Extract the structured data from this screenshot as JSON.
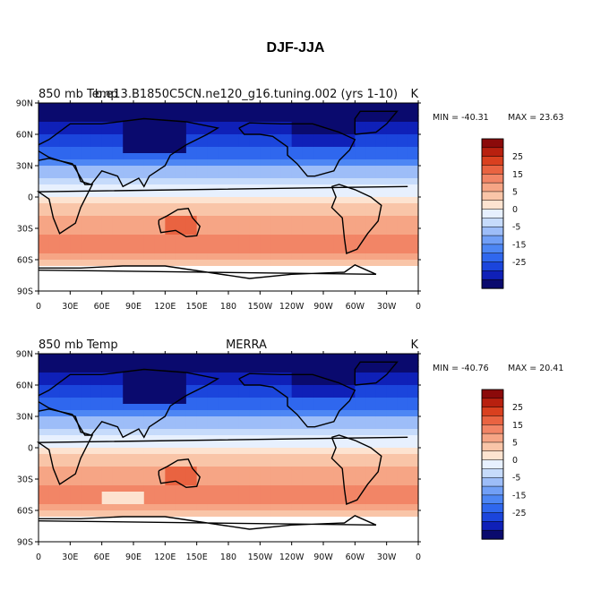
{
  "figure": {
    "title": "DJF-JJA"
  },
  "colors": {
    "scale": [
      "#0a0a6e",
      "#0f20b8",
      "#1b45dc",
      "#2f67ee",
      "#4d86f4",
      "#719ff6",
      "#9dbdf8",
      "#c6dbfb",
      "#e7f0fe",
      "#fde3d0",
      "#f9c5a8",
      "#f6a585",
      "#f28566",
      "#e96341",
      "#d9401f",
      "#b8200f",
      "#8b0a0a"
    ],
    "land_fill": "#ffffff",
    "coast": "#000000"
  },
  "chart_data": [
    {
      "type": "heatmap",
      "left_label": "850 mb Temp",
      "center_label": "b.e13.B1850C5CN.ne120_g16.tuning.002 (yrs 1-10)",
      "unit_label": "K",
      "stats": {
        "min_label": "MIN = -40.31",
        "max_label": "MAX =  23.63",
        "min": -40.31,
        "max": 23.63
      },
      "x_ticks": [
        "0",
        "30E",
        "60E",
        "90E",
        "120E",
        "150E",
        "180",
        "150W",
        "120W",
        "90W",
        "60W",
        "30W",
        "0"
      ],
      "y_ticks": [
        "90N",
        "60N",
        "30N",
        "0",
        "30S",
        "60S",
        "90S"
      ],
      "x_range": [
        0,
        360
      ],
      "y_range": [
        -90,
        90
      ]
    },
    {
      "type": "heatmap",
      "left_label": "850 mb Temp",
      "center_label": "MERRA",
      "unit_label": "K",
      "stats": {
        "min_label": "MIN = -40.76",
        "max_label": "MAX =  20.41",
        "min": -40.76,
        "max": 20.41
      },
      "x_ticks": [
        "0",
        "30E",
        "60E",
        "90E",
        "120E",
        "150E",
        "180",
        "150W",
        "120W",
        "90W",
        "60W",
        "30W",
        "0"
      ],
      "y_ticks": [
        "90N",
        "60N",
        "30N",
        "0",
        "30S",
        "60S",
        "90S"
      ],
      "x_range": [
        0,
        360
      ],
      "y_range": [
        -90,
        90
      ]
    }
  ],
  "colorbar": {
    "labels": [
      "25",
      "15",
      "5",
      "0",
      "-5",
      "-15",
      "-25"
    ],
    "levels_desc": [
      30,
      25,
      20,
      15,
      10,
      5,
      2.5,
      0,
      -2.5,
      -5,
      -10,
      -15,
      -20,
      -25,
      -30,
      -35
    ]
  }
}
